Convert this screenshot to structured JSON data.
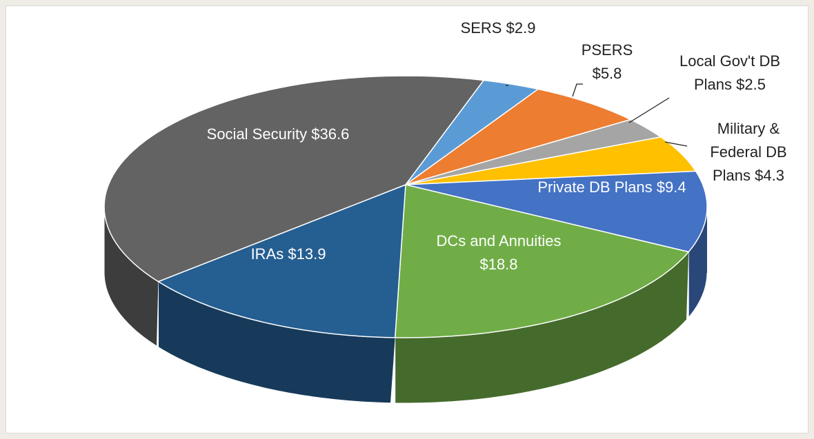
{
  "chart_data": {
    "type": "pie3d",
    "categories": [
      "SERS",
      "PSERS",
      "Local Gov't DB Plans",
      "Military & Federal DB Plans",
      "Private DB Plans",
      "DCs and Annuities",
      "IRAs",
      "Social Security"
    ],
    "values": [
      2.9,
      5.8,
      2.5,
      4.3,
      9.4,
      18.8,
      13.9,
      36.6
    ],
    "value_labels": [
      "$2.9",
      "$5.8",
      "$2.5",
      "$4.3",
      "$9.4",
      "$18.8",
      "$13.9",
      "$36.6"
    ],
    "colors": [
      "#5b9bd5",
      "#ed7d31",
      "#a5a5a5",
      "#ffc000",
      "#4472c4",
      "#70ad47",
      "#255e91",
      "#636363"
    ]
  }
}
